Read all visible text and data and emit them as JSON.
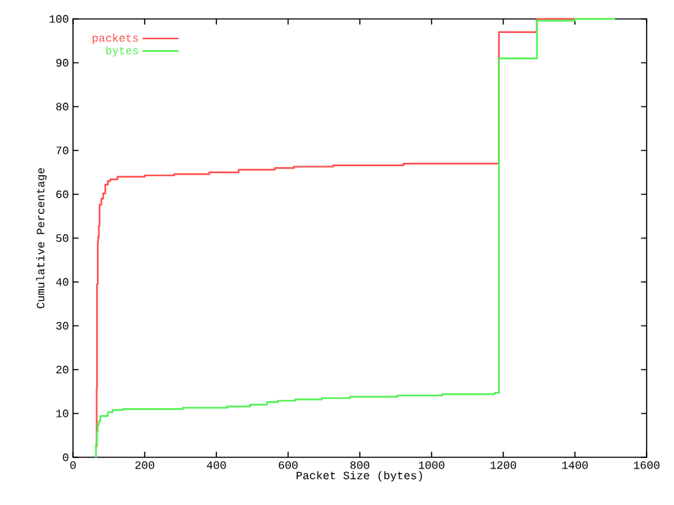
{
  "chart_data": {
    "type": "step",
    "xlabel": "Packet Size (bytes)",
    "ylabel": "Cumulative Percentage",
    "xlim": [
      0,
      1600
    ],
    "xticks": [
      0,
      200,
      400,
      600,
      800,
      1000,
      1200,
      1400,
      1600
    ],
    "ylim": [
      0,
      100
    ],
    "yticks": [
      0,
      10,
      20,
      30,
      40,
      50,
      60,
      70,
      80,
      90,
      100
    ],
    "grid": false,
    "legend": "top left",
    "series": [
      {
        "name": "packets",
        "color": "#ff5050",
        "x": [
          64,
          66,
          67,
          69,
          70,
          72,
          74,
          79,
          84,
          90,
          97,
          104,
          124,
          200,
          282,
          380,
          462,
          563,
          616,
          726,
          922,
          1188,
          1294,
          1400
        ],
        "values": [
          2.5,
          15.8,
          39.5,
          49,
          50.2,
          52.8,
          57.6,
          59,
          60.2,
          62.2,
          63,
          63.4,
          64,
          64.3,
          64.6,
          65,
          65.6,
          66,
          66.3,
          66.6,
          67,
          97,
          100,
          100
        ]
      },
      {
        "name": "bytes",
        "color": "#50f050",
        "x": [
          62,
          64,
          67,
          69,
          72,
          76,
          97,
          110,
          140,
          306,
          430,
          494,
          541,
          572,
          619,
          694,
          772,
          905,
          1030,
          1176,
          1188,
          1294,
          1400,
          1512
        ],
        "values": [
          0,
          3,
          5.8,
          7.4,
          8.3,
          9.4,
          10.3,
          10.8,
          11,
          11.3,
          11.6,
          12,
          12.6,
          12.9,
          13.2,
          13.5,
          13.8,
          14.1,
          14.4,
          14.7,
          91,
          99.6,
          100,
          100
        ]
      }
    ]
  }
}
